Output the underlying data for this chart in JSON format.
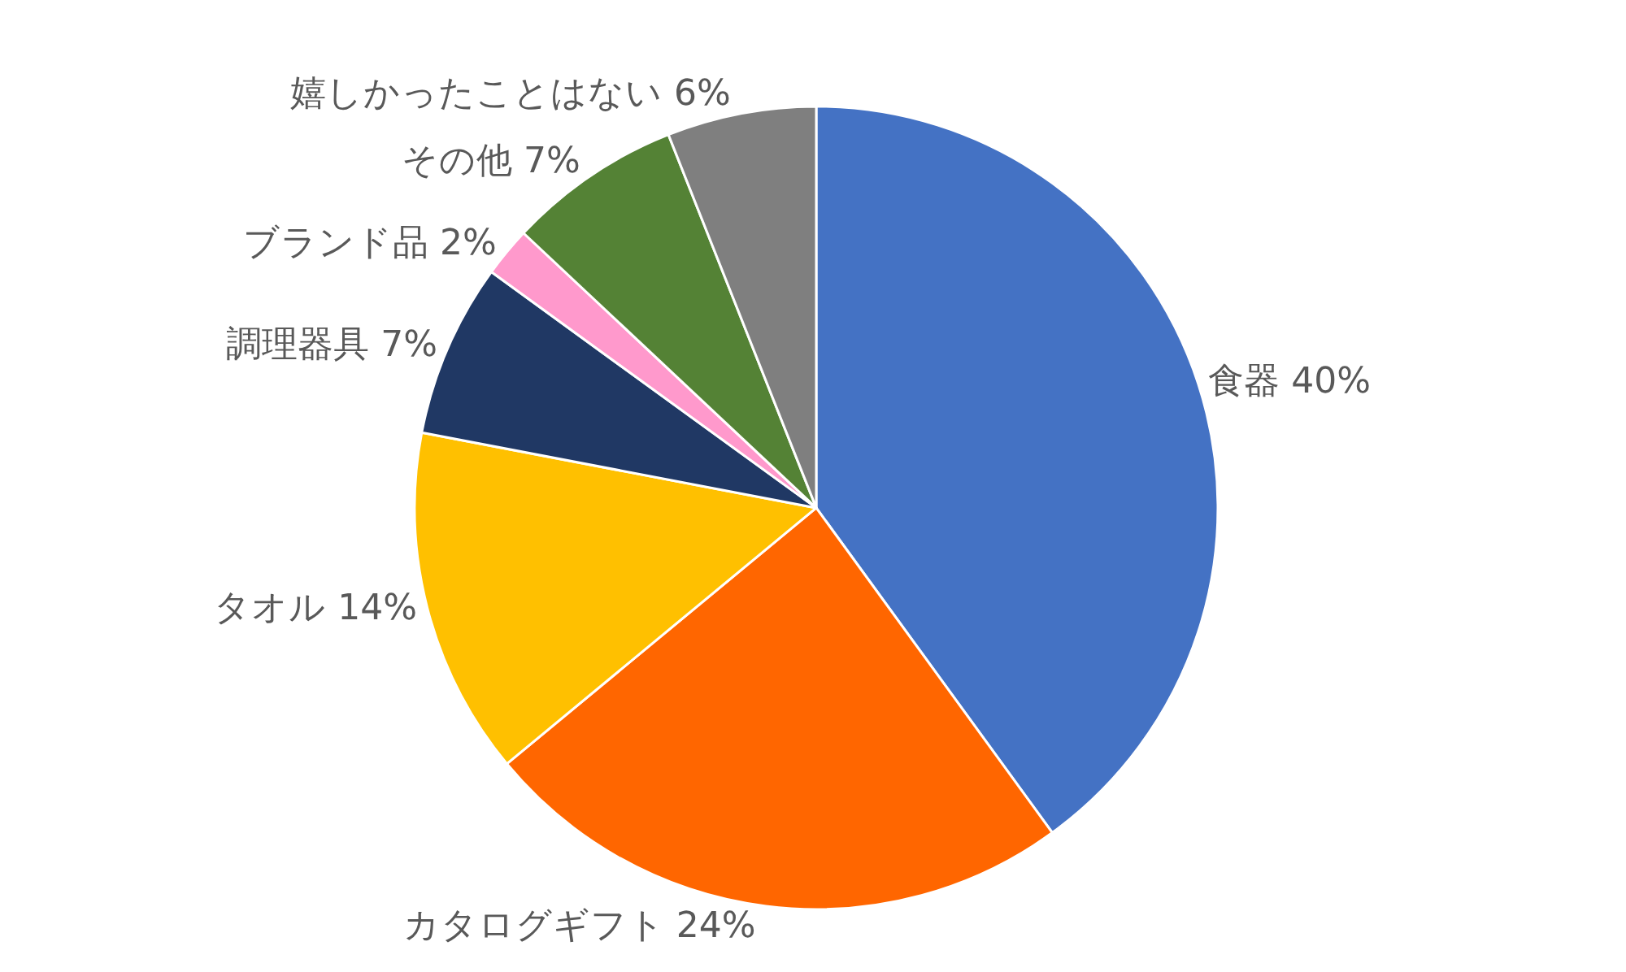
{
  "chart_data": {
    "type": "pie",
    "categories": [
      "食器",
      "カタログギフト",
      "タオル",
      "調理器具",
      "ブランド品",
      "その他",
      "嬉しかったことはない"
    ],
    "values": [
      40,
      24,
      14,
      7,
      2,
      7,
      6
    ],
    "value_labels": [
      "40%",
      "24%",
      "14%",
      "7%",
      "2%",
      "7%",
      "6%"
    ],
    "colors": [
      "#4472c4",
      "#ff6600",
      "#ffc000",
      "#203864",
      "#ff99cc",
      "#548235",
      "#7f7f7f"
    ],
    "legend": false
  }
}
